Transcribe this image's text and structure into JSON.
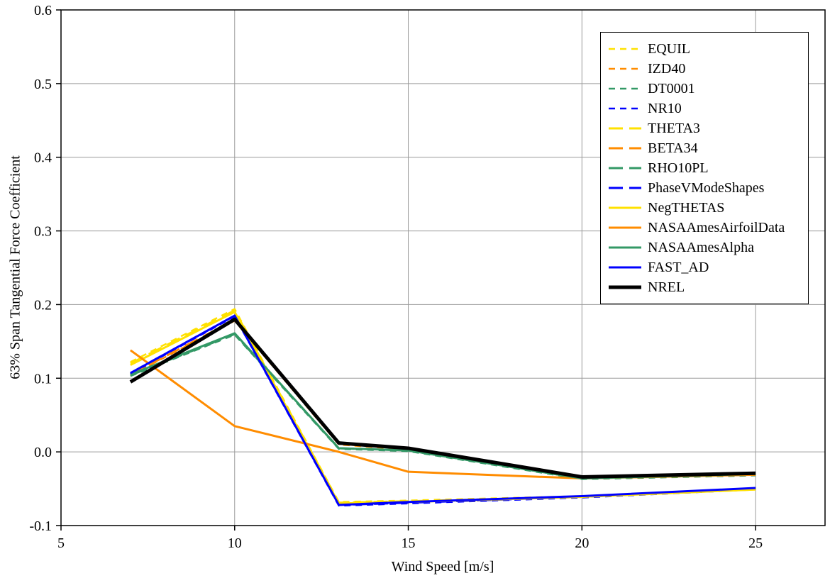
{
  "chart_data": {
    "type": "line",
    "title": "",
    "xlabel": "Wind Speed [m/s]",
    "ylabel": "63% Span Tangential Force Coefficient",
    "xlim": [
      5,
      27
    ],
    "ylim": [
      -0.1,
      0.6
    ],
    "grid": true,
    "legend_position": "top-right",
    "gridline_color": "#9a9a9a",
    "frame_color": "#000000",
    "xticks": [
      5,
      10,
      15,
      20,
      25
    ],
    "xtick_labels": [
      "5",
      "10",
      "15",
      "20",
      "25"
    ],
    "yticks": [
      0.6,
      0.5,
      0.4,
      0.3,
      0.2,
      0.1,
      0.0,
      -0.1
    ],
    "ytick_labels": [
      "0.6",
      "0.5",
      "0.4",
      "0.3",
      "0.2",
      "0.1",
      "0.0",
      "-0.1"
    ],
    "x": [
      7,
      10,
      13,
      15,
      20,
      25
    ],
    "series": [
      {
        "name": "EQUIL",
        "color": "#FFE100",
        "dash": "9 7",
        "width": 2.5,
        "values": [
          0.122,
          0.194,
          -0.068,
          -0.066,
          -0.06,
          -0.05
        ]
      },
      {
        "name": "IZD40",
        "color": "#FF8C00",
        "dash": "9 7",
        "width": 2.5,
        "values": [
          0.104,
          0.178,
          0.01,
          0.003,
          -0.036,
          -0.031
        ]
      },
      {
        "name": "DT0001",
        "color": "#339966",
        "dash": "9 7",
        "width": 2.5,
        "values": [
          0.103,
          0.159,
          0.004,
          0.001,
          -0.037,
          -0.032
        ]
      },
      {
        "name": "NR10",
        "color": "#0000FF",
        "dash": "9 7",
        "width": 2.5,
        "values": [
          0.106,
          0.184,
          -0.073,
          -0.07,
          -0.062,
          -0.051
        ]
      },
      {
        "name": "THETA3",
        "color": "#FFE100",
        "dash": "20 9",
        "width": 3,
        "values": [
          0.12,
          0.192,
          -0.069,
          -0.067,
          -0.061,
          -0.051
        ]
      },
      {
        "name": "BETA34",
        "color": "#FF8C00",
        "dash": "20 9",
        "width": 3,
        "values": [
          0.105,
          0.179,
          0.011,
          0.004,
          -0.035,
          -0.03
        ]
      },
      {
        "name": "RHO10PL",
        "color": "#339966",
        "dash": "20 9",
        "width": 3,
        "values": [
          0.104,
          0.16,
          0.005,
          0.002,
          -0.036,
          -0.031
        ]
      },
      {
        "name": "PhaseVModeShapes",
        "color": "#0000FF",
        "dash": "20 9",
        "width": 3,
        "values": [
          0.107,
          0.185,
          -0.072,
          -0.069,
          -0.061,
          -0.05
        ]
      },
      {
        "name": "NegTHETAS",
        "color": "#FFE100",
        "dash": null,
        "width": 3,
        "values": [
          0.118,
          0.19,
          -0.07,
          -0.068,
          -0.061,
          -0.051
        ]
      },
      {
        "name": "NASAAmesAirfoilData",
        "color": "#FF8C00",
        "dash": null,
        "width": 3,
        "values": [
          0.138,
          0.035,
          0.0,
          -0.027,
          -0.036,
          -0.031
        ]
      },
      {
        "name": "NASAAmesAlpha",
        "color": "#339966",
        "dash": null,
        "width": 3,
        "values": [
          0.105,
          0.161,
          0.005,
          0.002,
          -0.036,
          -0.03
        ]
      },
      {
        "name": "FAST_AD",
        "color": "#0000FF",
        "dash": null,
        "width": 3,
        "values": [
          0.107,
          0.185,
          -0.072,
          -0.068,
          -0.06,
          -0.049
        ]
      },
      {
        "name": "NREL",
        "color": "#000000",
        "dash": null,
        "width": 5,
        "values": [
          0.095,
          0.18,
          0.012,
          0.005,
          -0.034,
          -0.029
        ]
      }
    ]
  }
}
